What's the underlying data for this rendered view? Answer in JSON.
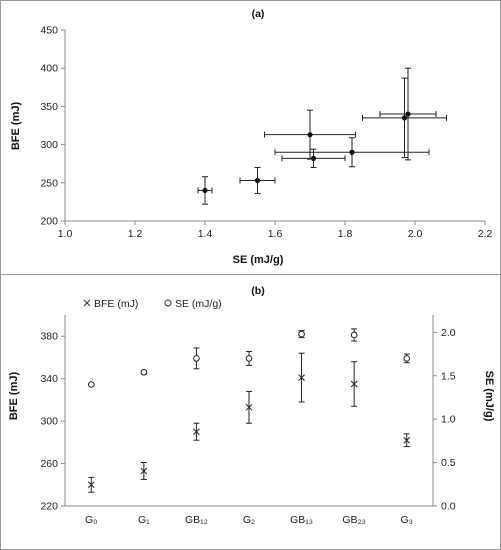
{
  "chart_data": [
    {
      "type": "scatter",
      "panel_label": "(a)",
      "xlabel": "SE (mJ/g)",
      "ylabel": "BFE (mJ)",
      "xlim": [
        1.0,
        2.2
      ],
      "ylim": [
        200,
        450
      ],
      "xticks": [
        "1.0",
        "1.2",
        "1.4",
        "1.6",
        "1.8",
        "2.0",
        "2.2"
      ],
      "yticks": [
        "200",
        "250",
        "300",
        "350",
        "400",
        "450"
      ],
      "grid": false,
      "points": [
        {
          "x": 1.4,
          "y": 240,
          "xerr": 0.02,
          "yerr": 18
        },
        {
          "x": 1.55,
          "y": 253,
          "xerr": 0.05,
          "yerr": 17
        },
        {
          "x": 1.7,
          "y": 313,
          "xerr": 0.13,
          "yerr": 32
        },
        {
          "x": 1.71,
          "y": 282,
          "xerr": 0.09,
          "yerr": 12
        },
        {
          "x": 1.82,
          "y": 290,
          "xerr": 0.22,
          "yerr": 19
        },
        {
          "x": 1.97,
          "y": 335,
          "xerr": 0.12,
          "yerr": 52
        },
        {
          "x": 1.98,
          "y": 340,
          "xerr": 0.08,
          "yerr": 60
        }
      ]
    },
    {
      "type": "scatter",
      "panel_label": "(b)",
      "categories": [
        "G₀",
        "G₁",
        "GB₁₂",
        "G₂",
        "GB₁₃",
        "GB₂₃",
        "G₃"
      ],
      "ylabel": "BFE (mJ)",
      "y2label": "SE (mJ/g)",
      "ylim": [
        220,
        400
      ],
      "y2lim": [
        0.0,
        2.2
      ],
      "yticks": [
        "220",
        "260",
        "300",
        "340",
        "380"
      ],
      "y2ticks": [
        "0.0",
        "0.5",
        "1.0",
        "1.5",
        "2.0"
      ],
      "legend_position": "top-left",
      "grid": false,
      "series": [
        {
          "name": "BFE (mJ)",
          "marker": "x",
          "axis": "left",
          "values": [
            240,
            253,
            290,
            313,
            341,
            335,
            282
          ],
          "errors": [
            7,
            8,
            8,
            15,
            23,
            21,
            6
          ]
        },
        {
          "name": "SE (mJ/g)",
          "marker": "o",
          "axis": "right",
          "values": [
            1.4,
            1.54,
            1.7,
            1.7,
            1.98,
            1.97,
            1.7
          ],
          "errors": [
            0.01,
            0.02,
            0.12,
            0.08,
            0.04,
            0.07,
            0.05
          ]
        }
      ]
    }
  ]
}
